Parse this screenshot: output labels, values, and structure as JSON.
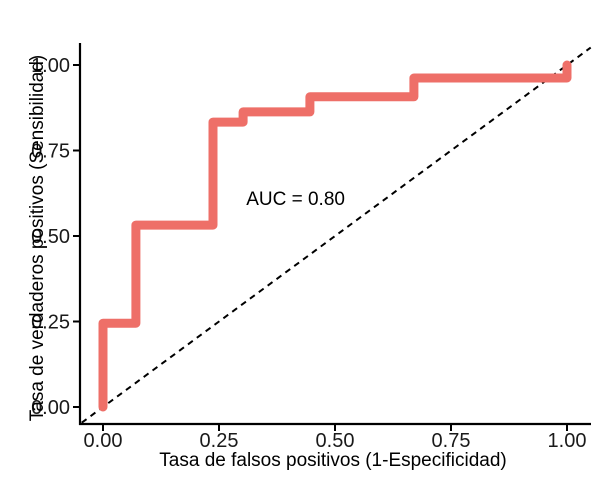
{
  "chart_data": {
    "type": "line",
    "subtype": "roc-step-curve",
    "title": "",
    "xlabel": "Tasa de falsos positivos (1-Especificidad)",
    "ylabel": "Tasa de verdaderos positivos (Sensibilidad)",
    "xlim": [
      -0.05,
      1.05
    ],
    "ylim": [
      -0.05,
      1.05
    ],
    "grid": false,
    "legend_position": "none",
    "background_color": "#ffffff",
    "axis_color": "#000000",
    "x_ticks": {
      "values": [
        0,
        0.25,
        0.5,
        0.75,
        1
      ],
      "labels": [
        "0.00",
        "0.25",
        "0.50",
        "0.75",
        "1.00"
      ]
    },
    "y_ticks": {
      "values": [
        0,
        0.25,
        0.5,
        0.75,
        1
      ],
      "labels": [
        "0.00",
        "0.25",
        "0.50",
        "0.75",
        "1.00"
      ]
    },
    "series": [
      {
        "name": "ROC curve",
        "style": "step-solid",
        "color": "#ee6f68",
        "stroke_width": 9,
        "points": [
          [
            0.0,
            0.0
          ],
          [
            0.0,
            0.245
          ],
          [
            0.071,
            0.245
          ],
          [
            0.071,
            0.532
          ],
          [
            0.237,
            0.532
          ],
          [
            0.237,
            0.833
          ],
          [
            0.302,
            0.833
          ],
          [
            0.302,
            0.863
          ],
          [
            0.446,
            0.863
          ],
          [
            0.446,
            0.907
          ],
          [
            0.67,
            0.907
          ],
          [
            0.67,
            0.962
          ],
          [
            1.0,
            0.962
          ],
          [
            1.0,
            1.0
          ]
        ]
      },
      {
        "name": "chance diagonal (y = x)",
        "style": "dashed",
        "color": "#000000",
        "stroke_width": 2,
        "dash": [
          6,
          5
        ],
        "points": [
          [
            -0.046,
            -0.046
          ],
          [
            1.051,
            1.051
          ]
        ]
      }
    ],
    "annotations": [
      {
        "text": "AUC = 0.80",
        "x": 0.415,
        "y": 0.608
      }
    ]
  }
}
